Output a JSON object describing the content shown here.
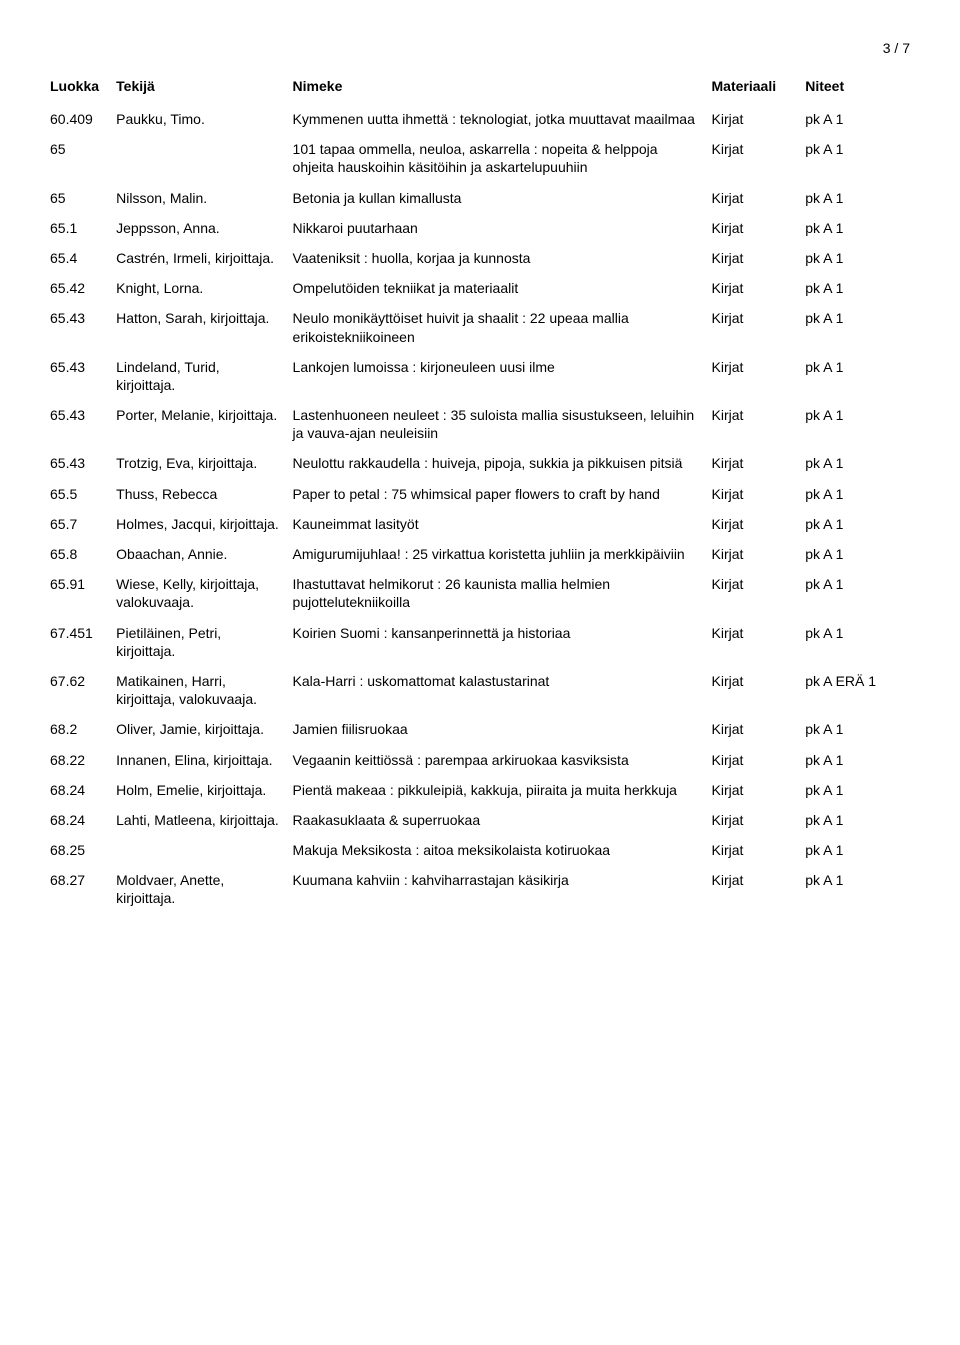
{
  "page_number": "3 / 7",
  "columns": [
    "Luokka",
    "Tekijä",
    "Nimeke",
    "Materiaali",
    "Niteet"
  ],
  "rows": [
    {
      "luokka": "60.409",
      "tekija": "Paukku, Timo.",
      "nimeke": "Kymmenen uutta ihmettä : teknologiat, jotka muuttavat maailmaa",
      "materiaali": "Kirjat",
      "niteet": "pk A 1"
    },
    {
      "luokka": "65",
      "tekija": "",
      "nimeke": "101 tapaa ommella, neuloa, askarrella : nopeita & helppoja ohjeita hauskoihin käsitöihin ja askartelupuuhiin",
      "materiaali": "Kirjat",
      "niteet": "pk A 1"
    },
    {
      "luokka": "65",
      "tekija": "Nilsson, Malin.",
      "nimeke": "Betonia ja kullan kimallusta",
      "materiaali": "Kirjat",
      "niteet": "pk A 1"
    },
    {
      "luokka": "65.1",
      "tekija": "Jeppsson, Anna.",
      "nimeke": "Nikkaroi puutarhaan",
      "materiaali": "Kirjat",
      "niteet": "pk A 1"
    },
    {
      "luokka": "65.4",
      "tekija": "Castrén, Irmeli, kirjoittaja.",
      "nimeke": "Vaateniksit : huolla, korjaa ja kunnosta",
      "materiaali": "Kirjat",
      "niteet": "pk A 1"
    },
    {
      "luokka": "65.42",
      "tekija": "Knight, Lorna.",
      "nimeke": "Ompelutöiden tekniikat ja materiaalit",
      "materiaali": "Kirjat",
      "niteet": "pk A 1"
    },
    {
      "luokka": "65.43",
      "tekija": "Hatton, Sarah, kirjoittaja.",
      "nimeke": "Neulo monikäyttöiset huivit ja shaalit : 22 upeaa mallia erikoistekniikoineen",
      "materiaali": "Kirjat",
      "niteet": "pk A 1"
    },
    {
      "luokka": "65.43",
      "tekija": "Lindeland, Turid, kirjoittaja.",
      "nimeke": "Lankojen lumoissa : kirjoneuleen uusi ilme",
      "materiaali": "Kirjat",
      "niteet": "pk A 1"
    },
    {
      "luokka": "65.43",
      "tekija": "Porter, Melanie, kirjoittaja.",
      "nimeke": "Lastenhuoneen neuleet : 35 suloista mallia sisustukseen, leluihin ja vauva-ajan neuleisiin",
      "materiaali": "Kirjat",
      "niteet": "pk A 1"
    },
    {
      "luokka": "65.43",
      "tekija": "Trotzig, Eva, kirjoittaja.",
      "nimeke": "Neulottu rakkaudella : huiveja, pipoja, sukkia ja pikkuisen pitsiä",
      "materiaali": "Kirjat",
      "niteet": "pk A 1"
    },
    {
      "luokka": "65.5",
      "tekija": "Thuss, Rebecca",
      "nimeke": "Paper to petal : 75 whimsical paper flowers to craft by hand",
      "materiaali": "Kirjat",
      "niteet": "pk A 1"
    },
    {
      "luokka": "65.7",
      "tekija": "Holmes, Jacqui, kirjoittaja.",
      "nimeke": "Kauneimmat lasityöt",
      "materiaali": "Kirjat",
      "niteet": "pk A 1"
    },
    {
      "luokka": "65.8",
      "tekija": "Obaachan, Annie.",
      "nimeke": "Amigurumijuhlaa! : 25 virkattua koristetta juhliin ja merkkipäiviin",
      "materiaali": "Kirjat",
      "niteet": "pk A 1"
    },
    {
      "luokka": "65.91",
      "tekija": "Wiese, Kelly, kirjoittaja, valokuvaaja.",
      "nimeke": "Ihastuttavat helmikorut : 26 kaunista mallia helmien pujottelutekniikoilla",
      "materiaali": "Kirjat",
      "niteet": "pk A 1"
    },
    {
      "luokka": "67.451",
      "tekija": "Pietiläinen, Petri, kirjoittaja.",
      "nimeke": "Koirien Suomi : kansanperinnettä ja historiaa",
      "materiaali": "Kirjat",
      "niteet": "pk A 1"
    },
    {
      "luokka": "67.62",
      "tekija": "Matikainen, Harri, kirjoittaja, valokuvaaja.",
      "nimeke": "Kala-Harri : uskomattomat kalastustarinat",
      "materiaali": "Kirjat",
      "niteet": "pk A ERÄ 1"
    },
    {
      "luokka": "68.2",
      "tekija": "Oliver, Jamie, kirjoittaja.",
      "nimeke": "Jamien fiilisruokaa",
      "materiaali": "Kirjat",
      "niteet": "pk A 1"
    },
    {
      "luokka": "68.22",
      "tekija": "Innanen, Elina, kirjoittaja.",
      "nimeke": "Vegaanin keittiössä : parempaa arkiruokaa kasviksista",
      "materiaali": "Kirjat",
      "niteet": "pk A 1"
    },
    {
      "luokka": "68.24",
      "tekija": "Holm, Emelie, kirjoittaja.",
      "nimeke": "Pientä makeaa : pikkuleipiä, kakkuja, piiraita ja muita herkkuja",
      "materiaali": "Kirjat",
      "niteet": "pk A 1"
    },
    {
      "luokka": "68.24",
      "tekija": "Lahti, Matleena, kirjoittaja.",
      "nimeke": "Raakasuklaata & superruokaa",
      "materiaali": "Kirjat",
      "niteet": "pk A 1"
    },
    {
      "luokka": "68.25",
      "tekija": "",
      "nimeke": "Makuja Meksikosta : aitoa meksikolaista kotiruokaa",
      "materiaali": "Kirjat",
      "niteet": "pk A 1"
    },
    {
      "luokka": "68.27",
      "tekija": "Moldvaer, Anette, kirjoittaja.",
      "nimeke": "Kuumana kahviin : kahviharrastajan käsikirja",
      "materiaali": "Kirjat",
      "niteet": "pk A 1"
    }
  ]
}
